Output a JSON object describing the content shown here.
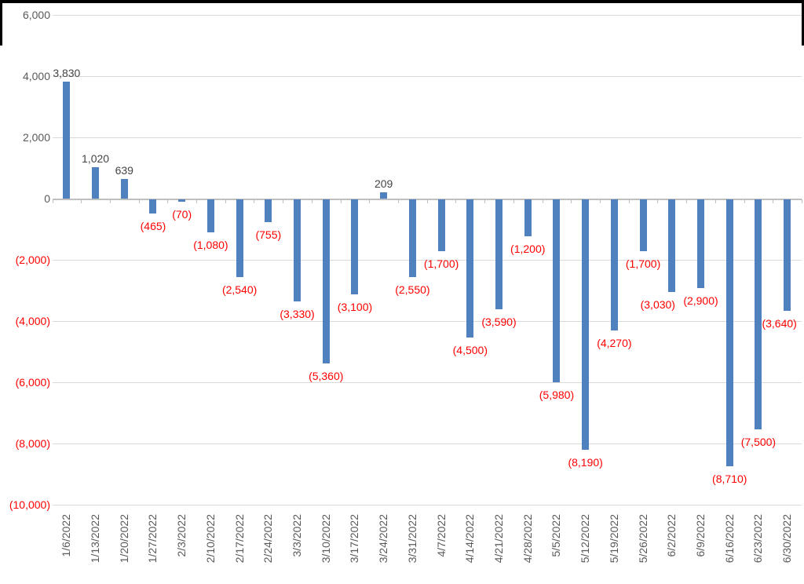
{
  "chart_data": {
    "type": "bar",
    "title": "",
    "xlabel": "",
    "ylabel": "",
    "legend": "none",
    "grid": true,
    "ylim": [
      -10000,
      6000
    ],
    "categories": [
      "1/6/2022",
      "1/13/2022",
      "1/20/2022",
      "1/27/2022",
      "2/3/2022",
      "2/10/2022",
      "2/17/2022",
      "2/24/2022",
      "3/3/2022",
      "3/10/2022",
      "3/17/2022",
      "3/24/2022",
      "3/31/2022",
      "4/7/2022",
      "4/14/2022",
      "4/21/2022",
      "4/28/2022",
      "5/5/2022",
      "5/12/2022",
      "5/19/2022",
      "5/26/2022",
      "6/2/2022",
      "6/9/2022",
      "6/16/2022",
      "6/23/2022",
      "6/30/2022"
    ],
    "values": [
      3830,
      1020,
      639,
      -465,
      -70,
      -1080,
      -2540,
      -755,
      -3330,
      -5360,
      -3100,
      209,
      -2550,
      -1700,
      -4500,
      -3590,
      -1200,
      -5980,
      -8190,
      -4270,
      -1700,
      -3030,
      -2900,
      -8710,
      -7500,
      -3640
    ],
    "data_labels": [
      "3,830",
      "1,020",
      "639",
      "(465)",
      "(70)",
      "(1,080)",
      "(2,540)",
      "(755)",
      "(3,330)",
      "(5,360)",
      "(3,100)",
      "209",
      "(2,550)",
      "(1,700)",
      "(4,500)",
      "(3,590)",
      "(1,200)",
      "(5,980)",
      "(8,190)",
      "(4,270)",
      "(1,700)",
      "(3,030)",
      "(2,900)",
      "(8,710)",
      "(7,500)",
      "(3,640)"
    ],
    "y_axis": {
      "ticks": [
        {
          "value": 6000,
          "label": "6,000"
        },
        {
          "value": 4000,
          "label": "4,000"
        },
        {
          "value": 2000,
          "label": "2,000"
        },
        {
          "value": 0,
          "label": "0"
        },
        {
          "value": -2000,
          "label": "(2,000)"
        },
        {
          "value": -4000,
          "label": "(4,000)"
        },
        {
          "value": -6000,
          "label": "(6,000)"
        },
        {
          "value": -8000,
          "label": "(8,000)"
        },
        {
          "value": -10000,
          "label": "(10,000)"
        }
      ]
    },
    "colors": {
      "bar": "#4E81BD",
      "negative_text": "#FF0000",
      "positive_label_text": "#444444",
      "axis_text": "#595959",
      "gridline": "#D9D9D9",
      "axis_line": "#BFBFBF",
      "top_border": "#000000"
    },
    "layout_hints": {
      "label_dx": {
        "21": -18,
        "25": -10
      },
      "x_labels_rotated_90": true
    }
  }
}
